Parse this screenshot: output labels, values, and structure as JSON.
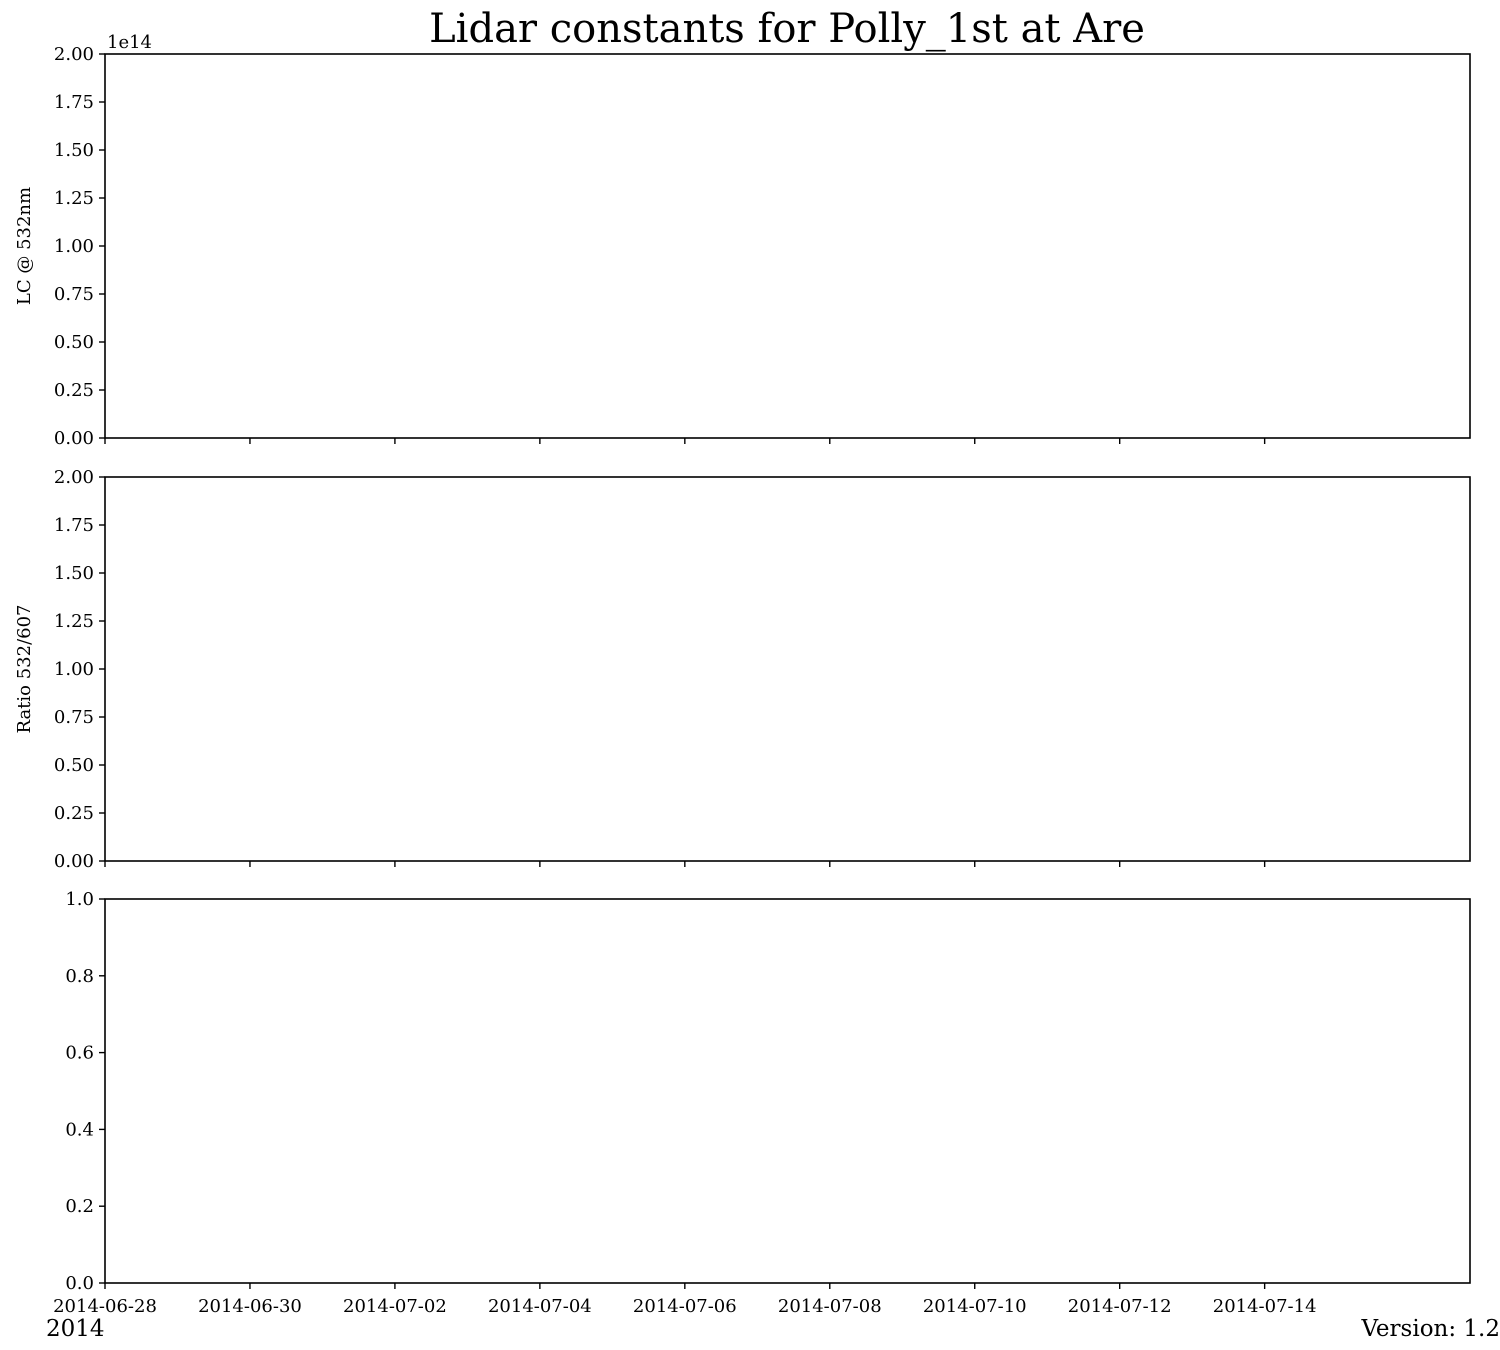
{
  "chart_data": {
    "title": "Lidar constants for Polly_1st at Are",
    "type": "line",
    "x_axis": {
      "type": "date",
      "range": [
        "2014-06-28",
        "2014-07-16T20:00"
      ],
      "tick_values": [
        "2014-06-28",
        "2014-06-30",
        "2014-07-02",
        "2014-07-04",
        "2014-07-06",
        "2014-07-08",
        "2014-07-10",
        "2014-07-12",
        "2014-07-14"
      ],
      "offset_label": "2014"
    },
    "panels": [
      {
        "ylabel": "LC @ 532nm",
        "ylim": [
          0,
          2.0
        ],
        "offset_label": "1e14",
        "y_ticks": [
          "0.00",
          "0.25",
          "0.50",
          "0.75",
          "1.00",
          "1.25",
          "1.50",
          "1.75",
          "2.00"
        ],
        "series": []
      },
      {
        "ylabel": "Ratio 532/607",
        "ylim": [
          0,
          2.0
        ],
        "offset_label": "",
        "y_ticks": [
          "0.00",
          "0.25",
          "0.50",
          "0.75",
          "1.00",
          "1.25",
          "1.50",
          "1.75",
          "2.00"
        ],
        "series": []
      },
      {
        "ylabel": "",
        "ylim": [
          0,
          1.0
        ],
        "offset_label": "",
        "y_ticks": [
          "0.0",
          "0.2",
          "0.4",
          "0.6",
          "0.8",
          "1.0"
        ],
        "series": []
      }
    ],
    "grid": false,
    "version_text": "Version: 1.2"
  }
}
